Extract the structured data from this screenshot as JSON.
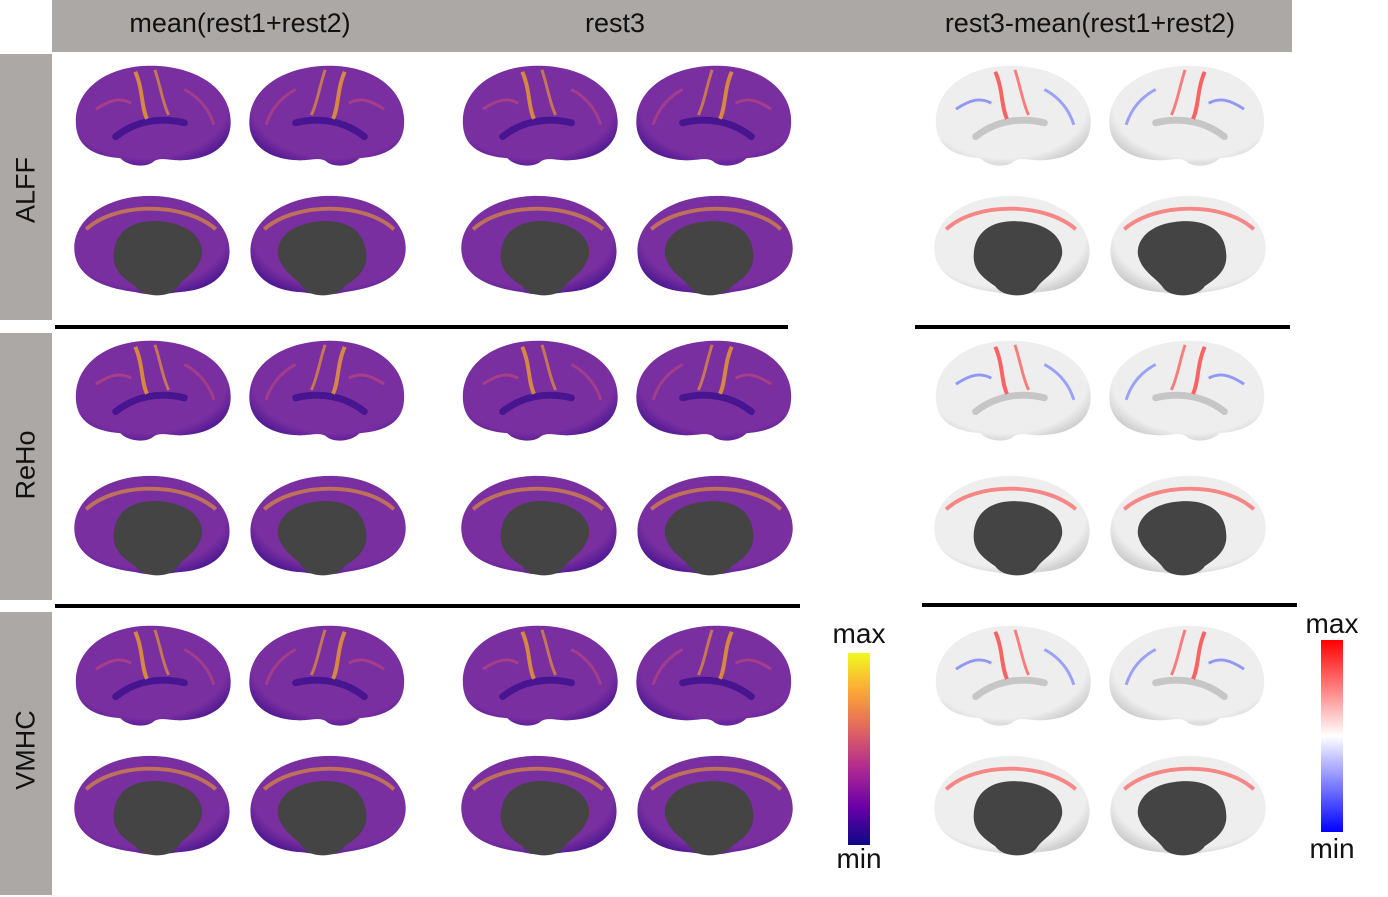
{
  "columns": [
    "mean(rest1+rest2)",
    "rest3",
    "rest3-mean(rest1+rest2)"
  ],
  "rows": [
    "ALFF",
    "ReHo",
    "VMHC"
  ],
  "colorbar_plasma": {
    "max_label": "max",
    "min_label": "min",
    "colors": [
      "#0d0887",
      "#6a00a8",
      "#b12a90",
      "#e16462",
      "#fca636",
      "#f0f921"
    ]
  },
  "colorbar_diverging": {
    "max_label": "max",
    "min_label": "min",
    "colors": [
      "#0000ff",
      "#ffffff",
      "#ff0000"
    ]
  },
  "palette": {
    "plasma_base": "#7a2fa0",
    "plasma_dark": "#3b0f8c",
    "plasma_bright": "#f5a623",
    "diff_base": "#eeeeee",
    "medial_wall": "#444444"
  }
}
